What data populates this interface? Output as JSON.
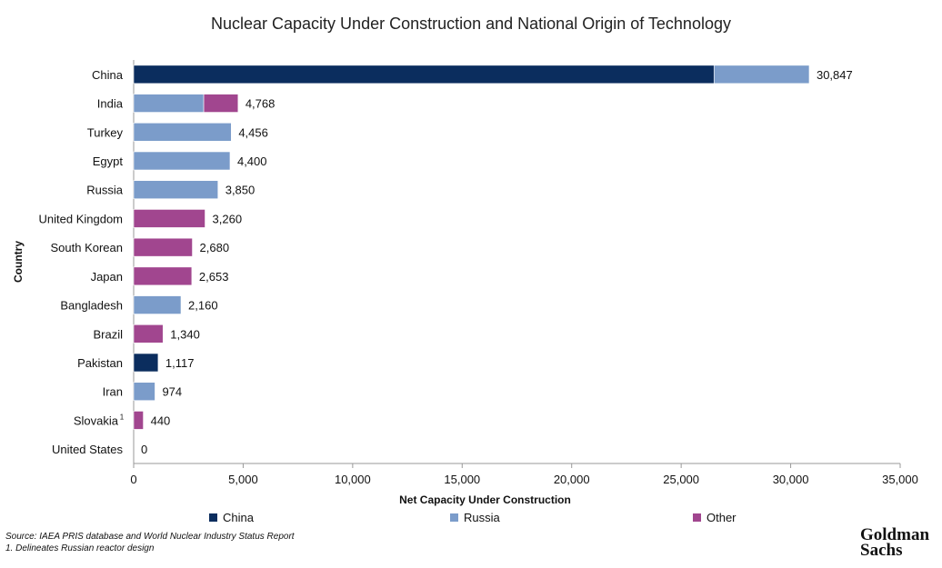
{
  "title": "Nuclear Capacity Under Construction and National Origin of Technology",
  "chart_data": {
    "type": "bar",
    "orientation": "horizontal",
    "stacked": true,
    "title": "Nuclear Capacity Under Construction and National Origin of Technology",
    "xlabel": "Net Capacity Under Construction",
    "ylabel": "Country",
    "xlim": [
      0,
      35000
    ],
    "xticks": [
      0,
      5000,
      10000,
      15000,
      20000,
      25000,
      30000,
      35000
    ],
    "xtick_labels": [
      "0",
      "5,000",
      "10,000",
      "15,000",
      "20,000",
      "25,000",
      "30,000",
      "35,000"
    ],
    "categories": [
      "China",
      "India",
      "Turkey",
      "Egypt",
      "Russia",
      "United Kingdom",
      "South Korean",
      "Japan",
      "Bangladesh",
      "Brazil",
      "Pakistan",
      "Iran",
      "Slovakia",
      "United States"
    ],
    "category_superscripts": [
      "",
      "",
      "",
      "",
      "",
      "",
      "",
      "",
      "",
      "",
      "",
      "",
      "1",
      ""
    ],
    "series": [
      {
        "name": "China",
        "color": "#0b2d5e",
        "values": [
          26500,
          0,
          0,
          0,
          0,
          0,
          0,
          0,
          0,
          0,
          1117,
          0,
          0,
          0
        ]
      },
      {
        "name": "Russia",
        "color": "#7b9cca",
        "values": [
          4347,
          3200,
          4456,
          4400,
          3850,
          0,
          0,
          0,
          2160,
          0,
          0,
          974,
          0,
          0
        ]
      },
      {
        "name": "Other",
        "color": "#a1468f",
        "values": [
          0,
          1568,
          0,
          0,
          0,
          3260,
          2680,
          2653,
          0,
          1340,
          0,
          0,
          440,
          0
        ]
      }
    ],
    "totals": [
      30847,
      4768,
      4456,
      4400,
      3850,
      3260,
      2680,
      2653,
      2160,
      1340,
      1117,
      974,
      440,
      0
    ],
    "total_labels": [
      "30,847",
      "4,768",
      "4,456",
      "4,400",
      "3,850",
      "3,260",
      "2,680",
      "2,653",
      "2,160",
      "1,340",
      "1,117",
      "974",
      "440",
      "0"
    ],
    "legend_position": "bottom"
  },
  "legend": [
    {
      "label": "China",
      "color": "#0b2d5e"
    },
    {
      "label": "Russia",
      "color": "#7b9cca"
    },
    {
      "label": "Other",
      "color": "#a1468f"
    }
  ],
  "footer": {
    "source": "Source: IAEA PRIS database and World Nuclear Industry Status Report",
    "note": "1.  Delineates Russian reactor design"
  },
  "logo": {
    "line1": "Goldman",
    "line2": "Sachs"
  }
}
